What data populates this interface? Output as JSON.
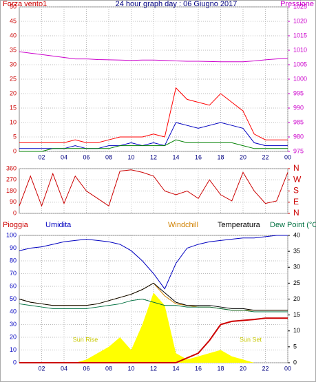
{
  "chart_data": [
    {
      "type": "line",
      "title": "24 hour graph day : 06 Giugno 2017",
      "ylabel": "Forza vento1",
      "y2label": "Pressione",
      "x": [
        0,
        1,
        2,
        3,
        4,
        5,
        6,
        7,
        8,
        9,
        10,
        11,
        12,
        13,
        14,
        15,
        16,
        17,
        18,
        19,
        20,
        21,
        22,
        23,
        24
      ],
      "xlim": [
        0,
        24
      ],
      "xticks": [
        {
          "value": 2,
          "label": "02"
        },
        {
          "value": 4,
          "label": "04"
        },
        {
          "value": 6,
          "label": "06"
        },
        {
          "value": 8,
          "label": "08"
        },
        10,
        12,
        14,
        16,
        18,
        20,
        22,
        {
          "value": 24,
          "label": "00"
        }
      ],
      "ylim": [
        0,
        50
      ],
      "yticks": [
        0,
        5,
        10,
        15,
        20,
        25,
        30,
        35,
        40,
        45,
        50
      ],
      "y2lim": [
        975,
        1025
      ],
      "y2ticks": [
        975,
        980,
        985,
        990,
        995,
        1000,
        1005,
        1010,
        1015,
        1020,
        1025
      ],
      "grid": true,
      "series": [
        {
          "color": "#ff0000",
          "values": [
            3,
            3,
            3,
            3,
            3,
            4,
            3,
            3,
            4,
            5,
            5,
            5,
            6,
            5,
            22,
            18,
            17,
            16,
            20,
            17,
            14,
            6,
            4,
            4,
            4
          ]
        },
        {
          "color": "#0000c0",
          "values": [
            1,
            1,
            1,
            1,
            1,
            2,
            1,
            1,
            2,
            2,
            3,
            2,
            3,
            2,
            10,
            9,
            8,
            9,
            10,
            9,
            8,
            3,
            2,
            2,
            2
          ]
        },
        {
          "color": "#008000",
          "values": [
            0,
            0,
            0,
            1,
            1,
            1,
            1,
            1,
            1,
            2,
            2,
            2,
            2,
            2,
            4,
            3,
            3,
            3,
            3,
            3,
            2,
            1,
            1,
            1,
            1
          ]
        },
        {
          "color": "#cc00cc",
          "axis": "y2",
          "values": [
            1009.5,
            1009,
            1008.5,
            1008,
            1007.5,
            1007,
            1007,
            1006.8,
            1006.7,
            1006.6,
            1006.5,
            1006.6,
            1006.6,
            1006.5,
            1006.3,
            1006.2,
            1006.2,
            1006.1,
            1006,
            1006,
            1006,
            1006.3,
            1006.7,
            1007,
            1007.2
          ]
        }
      ]
    },
    {
      "type": "line",
      "x": [
        0,
        1,
        2,
        3,
        4,
        5,
        6,
        7,
        8,
        9,
        10,
        11,
        12,
        13,
        14,
        15,
        16,
        17,
        18,
        19,
        20,
        21,
        22,
        23,
        24
      ],
      "xlim": [
        0,
        24
      ],
      "xticks": [
        2,
        4,
        6,
        8,
        10,
        12,
        14,
        16,
        18,
        20,
        22,
        24
      ],
      "ylim": [
        0,
        360
      ],
      "yticks": [
        0,
        90,
        180,
        270,
        360
      ],
      "y2lim": [
        0,
        360
      ],
      "y2ticks": [
        {
          "value": 0,
          "label": "N"
        },
        {
          "value": 90,
          "label": "E"
        },
        {
          "value": 180,
          "label": "S"
        },
        {
          "value": 270,
          "label": "W"
        },
        {
          "value": 360,
          "label": "N"
        }
      ],
      "grid": true,
      "series": [
        {
          "color": "#cc0000",
          "values": [
            60,
            300,
            60,
            320,
            80,
            300,
            180,
            120,
            60,
            340,
            350,
            330,
            300,
            180,
            150,
            180,
            120,
            270,
            150,
            100,
            330,
            180,
            80,
            100,
            330
          ]
        }
      ]
    },
    {
      "type": "line",
      "annotations": [
        "Sun Rise",
        "Sun Set"
      ],
      "x": [
        0,
        1,
        2,
        3,
        4,
        5,
        6,
        7,
        8,
        9,
        10,
        11,
        12,
        13,
        14,
        15,
        16,
        17,
        18,
        19,
        20,
        21,
        22,
        23,
        24
      ],
      "xlim": [
        0,
        24
      ],
      "xticks": [
        {
          "value": 2,
          "label": "02"
        },
        {
          "value": 4,
          "label": "04"
        },
        {
          "value": 6,
          "label": "06"
        },
        {
          "value": 8,
          "label": "08"
        },
        10,
        12,
        14,
        16,
        18,
        20,
        22,
        {
          "value": 24,
          "label": "00"
        }
      ],
      "ylim": [
        0,
        100
      ],
      "yticks": [
        0,
        10,
        20,
        30,
        40,
        50,
        60,
        70,
        80,
        90,
        100
      ],
      "y2lim": [
        0,
        40
      ],
      "y2ticks": [
        0,
        5,
        10,
        15,
        20,
        25,
        30,
        35,
        40
      ],
      "grid": true,
      "series": [
        {
          "color": "#ffff00",
          "axis": "y2",
          "fill": true,
          "values": [
            0,
            0,
            0,
            0,
            0,
            0,
            1,
            3,
            5,
            8,
            4,
            12,
            22,
            18,
            3,
            1,
            2,
            3,
            4,
            2,
            1,
            0,
            0,
            0,
            0
          ]
        },
        {
          "name": "Pioggia",
          "color": "#cc0000",
          "axis": "y2",
          "values": [
            0,
            0,
            0,
            0,
            0,
            0,
            0,
            0,
            0,
            0,
            0,
            0,
            0,
            0,
            0,
            1.5,
            3,
            7,
            12,
            13,
            13.3,
            13.6,
            14,
            14,
            14
          ]
        },
        {
          "name": "Umidita",
          "color": "#0000c0",
          "values": [
            88,
            90,
            91,
            93,
            95,
            96,
            97,
            96,
            95,
            93,
            88,
            80,
            70,
            58,
            78,
            90,
            93,
            95,
            96,
            97,
            98,
            98,
            99,
            100,
            100
          ]
        },
        {
          "name": "Windchill",
          "color": "#d08000",
          "axis": "y2",
          "values": [
            20,
            19,
            18.5,
            18,
            18,
            18,
            18,
            18.5,
            19.5,
            20.5,
            21.5,
            23,
            25,
            21,
            18.5,
            18,
            17.5,
            17.5,
            17,
            16.5,
            16.5,
            16.5,
            16.5,
            16.5,
            16.5
          ]
        },
        {
          "name": "Temperatura",
          "color": "#000000",
          "axis": "y2",
          "values": [
            20,
            19,
            18.5,
            18,
            18,
            18,
            18,
            18.5,
            19.5,
            20.5,
            21.5,
            23,
            25,
            22,
            19,
            18,
            18,
            18,
            17.5,
            17,
            17,
            16.5,
            16.5,
            16.5,
            16.5
          ]
        },
        {
          "name": "Dew Point (°C",
          "color": "#007040",
          "axis": "y2",
          "values": [
            18.5,
            18,
            17.5,
            17,
            17,
            17,
            17,
            17.5,
            18,
            18.5,
            19.5,
            20,
            19,
            18,
            18,
            17.5,
            17.5,
            17.5,
            17,
            16.5,
            16.5,
            16,
            16,
            16,
            16
          ]
        }
      ]
    }
  ]
}
